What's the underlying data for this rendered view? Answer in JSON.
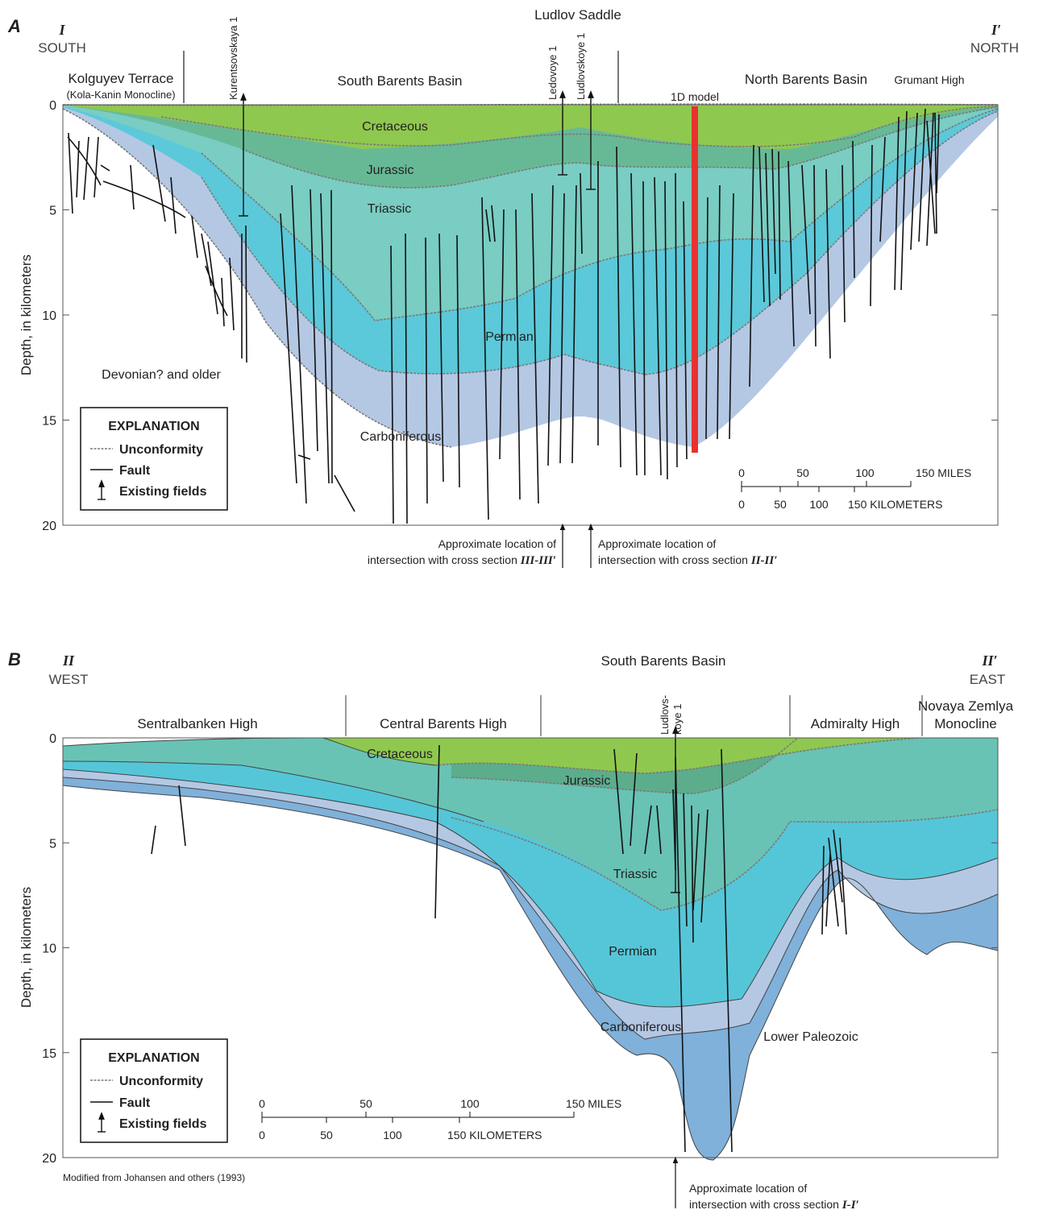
{
  "figure_panels": [
    {
      "letter": "A",
      "section_start": "I",
      "start_direction": "SOUTH",
      "section_end": "I′",
      "end_direction": "NORTH",
      "y_axis_label": "Depth, in kilometers",
      "yticks": [
        0,
        5,
        10,
        15,
        20
      ],
      "regions": [
        "Kolguyev Terrace",
        "(Kola-Kanin Monocline)",
        "South Barents Basin",
        "Ludlov Saddle",
        "North Barents Basin",
        "Grumant High"
      ],
      "wells": [
        "Kurentsovskaya 1",
        "Ledovoye 1",
        "Ludlovskoye 1"
      ],
      "model_label": "1D model",
      "units": [
        "Cretaceous",
        "Jurassic",
        "Triassic",
        "Permian",
        "Carboniferous",
        "Devonian? and older"
      ],
      "explanation": {
        "title": "EXPLANATION",
        "items": [
          "Unconformity",
          "Fault",
          "Existing fields"
        ]
      },
      "scale": {
        "miles": [
          "0",
          "50",
          "100",
          "150 MILES"
        ],
        "kilometers": [
          "0",
          "50",
          "100",
          "150 KILOMETERS"
        ]
      },
      "intersections": [
        {
          "line1": "Approximate location of",
          "line2": "intersection with cross section ",
          "section": "III-III′"
        },
        {
          "line1": "Approximate location of",
          "line2": "intersection with cross section ",
          "section": "II-II′"
        }
      ]
    },
    {
      "letter": "B",
      "section_start": "II",
      "start_direction": "WEST",
      "section_end": "II′",
      "end_direction": "EAST",
      "y_axis_label": "Depth, in kilometers",
      "yticks": [
        0,
        5,
        10,
        15,
        20
      ],
      "regions": [
        "Sentralbanken High",
        "Central Barents High",
        "South Barents Basin",
        "Admiralty High",
        "Novaya Zemlya",
        "Monocline"
      ],
      "wells": [
        "Ludlovs-",
        "koye 1"
      ],
      "units": [
        "Cretaceous",
        "Jurassic",
        "Triassic",
        "Permian",
        "Carboniferous",
        "Lower Paleozoic"
      ],
      "explanation": {
        "title": "EXPLANATION",
        "items": [
          "Unconformity",
          "Fault",
          "Existing fields"
        ]
      },
      "scale": {
        "miles": [
          "0",
          "50",
          "100",
          "150 MILES"
        ],
        "kilometers": [
          "0",
          "50",
          "100",
          "150 KILOMETERS"
        ]
      },
      "intersections": [
        {
          "line1": "Approximate location of",
          "line2": "intersection with cross section ",
          "section": "I-I′"
        }
      ]
    }
  ],
  "credit": "Modified from Johansen and others (1993)"
}
